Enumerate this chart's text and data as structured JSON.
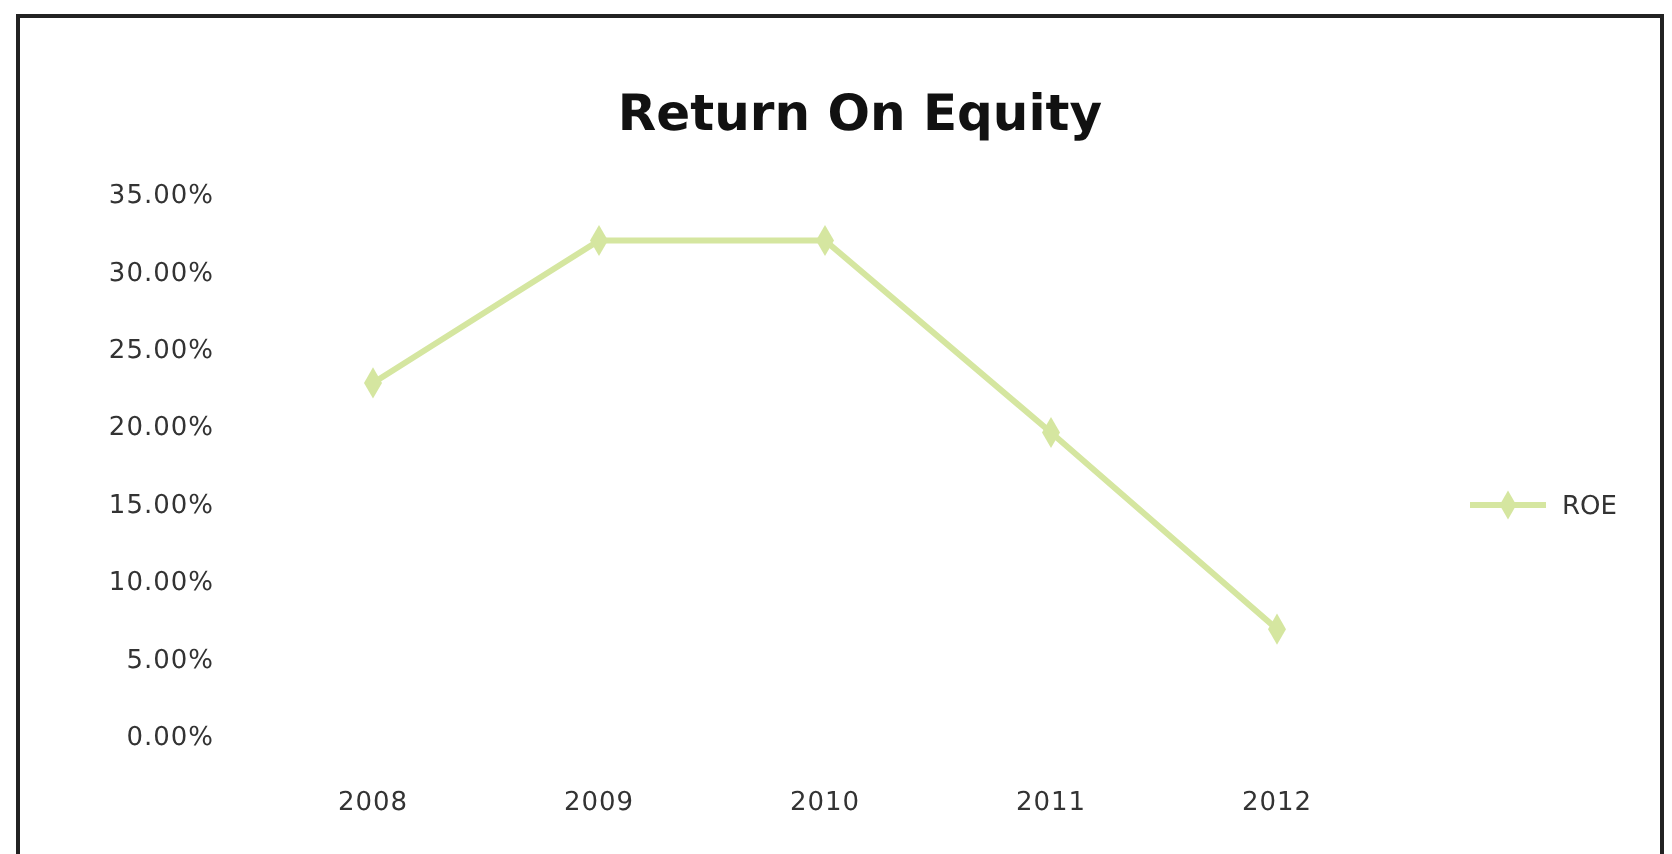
{
  "chart_data": {
    "type": "line",
    "title": "Return On Equity",
    "categories": [
      "2008",
      "2009",
      "2010",
      "2011",
      "2012"
    ],
    "series": [
      {
        "name": "ROE",
        "color": "#d5e6a0",
        "values": [
          22.8,
          32,
          32,
          19.6,
          6.9
        ]
      }
    ],
    "ylim": [
      0,
      35
    ],
    "yticks": [
      {
        "value": 0,
        "label": "0.00%"
      },
      {
        "value": 5,
        "label": "5.00%"
      },
      {
        "value": 10,
        "label": "10.00%"
      },
      {
        "value": 15,
        "label": "15.00%"
      },
      {
        "value": 20,
        "label": "20.00%"
      },
      {
        "value": 25,
        "label": "25.00%"
      },
      {
        "value": 30,
        "label": "30.00%"
      },
      {
        "value": 35,
        "label": "35.00%"
      }
    ],
    "grid": false,
    "legend": "right",
    "marker": "diamond",
    "line_style": "solid"
  }
}
